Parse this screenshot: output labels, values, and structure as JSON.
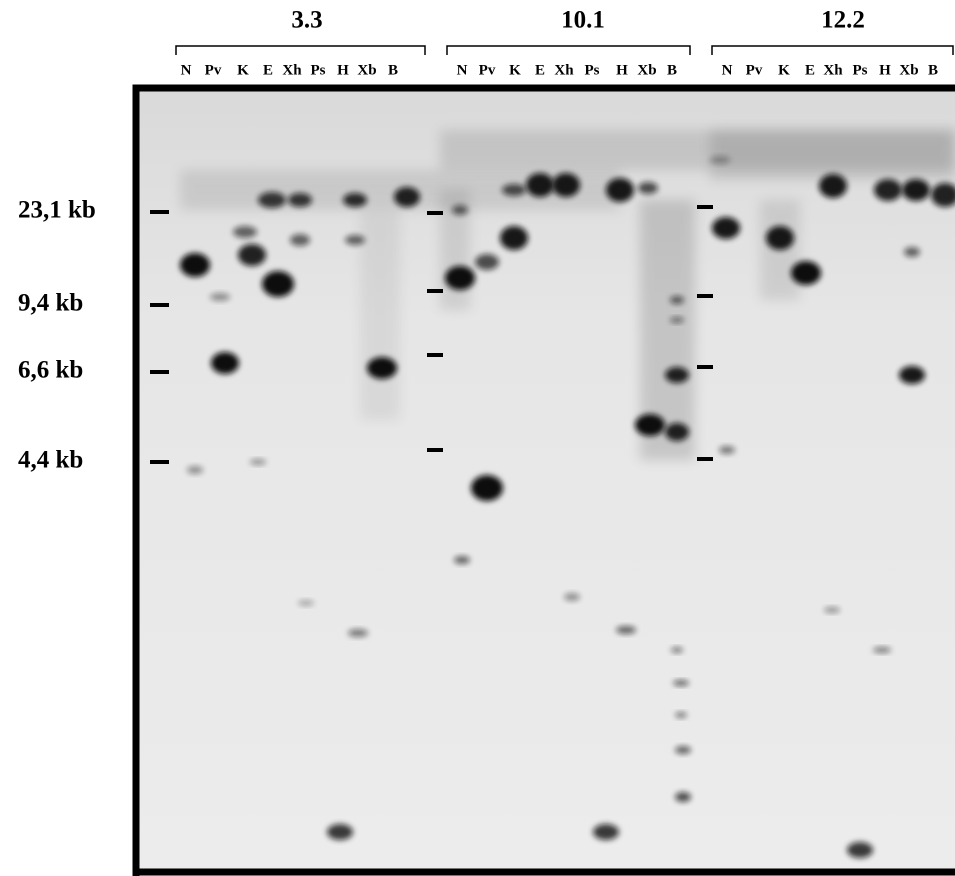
{
  "groups": [
    {
      "title": "3.3",
      "lanes": [
        "N",
        "Pv",
        "K",
        "E",
        "Xh",
        "Ps",
        "H",
        "Xb",
        "B"
      ]
    },
    {
      "title": "10.1",
      "lanes": [
        "N",
        "Pv",
        "K",
        "E",
        "Xh",
        "Ps",
        "H",
        "Xb",
        "B"
      ]
    },
    {
      "title": "12.2",
      "lanes": [
        "N",
        "Pv",
        "K",
        "E",
        "Xh",
        "Ps",
        "H",
        "Xb",
        "B"
      ]
    }
  ],
  "markers": [
    "23,1 kb",
    "9,4 kb",
    "6,6 kb",
    "4,4 kb"
  ]
}
